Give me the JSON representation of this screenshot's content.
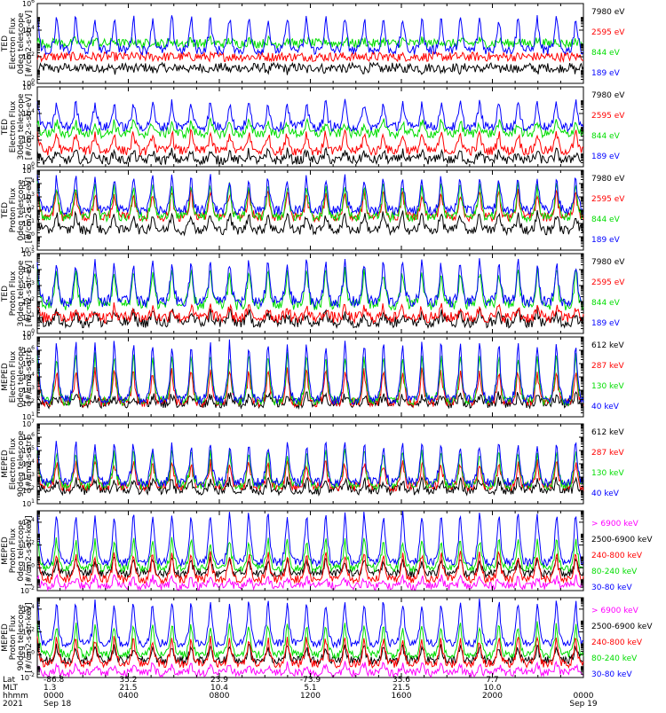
{
  "chart_data": [
    {
      "type": "line",
      "ylabel": [
        "TED",
        "Electron Flux",
        "0deg telescope",
        "[#/cm2-s-str-eV]"
      ],
      "yscale": "log",
      "ylim": [
        1,
        1000000
      ],
      "yticks": [
        {
          "exp": "0"
        },
        {
          "exp": "2"
        },
        {
          "exp": "4"
        },
        {
          "exp": "6"
        }
      ],
      "series": [
        {
          "name": "7980 eV",
          "color": "#000000"
        },
        {
          "name": "2595 eV",
          "color": "#ff0000"
        },
        {
          "name": "844 eV",
          "color": "#00dd00"
        },
        {
          "name": "189 eV",
          "color": "#0000ff"
        }
      ],
      "levels": [
        [
          1.2,
          2.0,
          3.0,
          2.5
        ],
        [
          1.0,
          2.0,
          3.2,
          4.5
        ]
      ]
    },
    {
      "type": "line",
      "ylabel": [
        "TED",
        "Electron Flux",
        "30deg telescope",
        "[#/cm2-s-str-eV]"
      ],
      "yscale": "log",
      "ylim": [
        1,
        1000000
      ],
      "yticks": [
        {
          "exp": "0"
        },
        {
          "exp": "2"
        },
        {
          "exp": "4"
        },
        {
          "exp": "6"
        }
      ],
      "series": [
        {
          "name": "7980 eV",
          "color": "#000000"
        },
        {
          "name": "2595 eV",
          "color": "#ff0000"
        },
        {
          "name": "844 eV",
          "color": "#00dd00"
        },
        {
          "name": "189 eV",
          "color": "#0000ff"
        }
      ],
      "levels": [
        [
          0.5,
          1.2,
          2.5,
          3.0
        ],
        [
          1.0,
          2.3,
          3.2,
          4.5
        ]
      ]
    },
    {
      "type": "line",
      "ylabel": [
        "TED",
        "Proton Flux",
        "0deg telescope",
        "[#/cm2-s-str-eV]"
      ],
      "yscale": "log",
      "ylim": [
        0.1,
        100000
      ],
      "yticks": [
        {
          "exp": "-1"
        },
        {
          "exp": "0"
        },
        {
          "exp": "1"
        },
        {
          "exp": "2"
        },
        {
          "exp": "3"
        },
        {
          "exp": "4"
        },
        {
          "exp": "5"
        }
      ],
      "series": [
        {
          "name": "7980 eV",
          "color": "#000000"
        },
        {
          "name": "2595 eV",
          "color": "#ff0000"
        },
        {
          "name": "844 eV",
          "color": "#00dd00"
        },
        {
          "name": "189 eV",
          "color": "#0000ff"
        }
      ],
      "levels": [
        [
          0.5,
          1.5,
          1.5,
          2.0
        ],
        [
          1.5,
          3.0,
          3.5,
          4.0
        ]
      ]
    },
    {
      "type": "line",
      "ylabel": [
        "TED",
        "Proton Flux",
        "30deg telescope",
        "[#/cm2-s-str-eV]"
      ],
      "yscale": "log",
      "ylim": [
        1,
        100000
      ],
      "yticks": [
        {
          "exp": "0"
        },
        {
          "exp": "1"
        },
        {
          "exp": "2"
        },
        {
          "exp": "3"
        },
        {
          "exp": "4"
        },
        {
          "exp": "5"
        }
      ],
      "series": [
        {
          "name": "7980 eV",
          "color": "#000000"
        },
        {
          "name": "2595 eV",
          "color": "#ff0000"
        },
        {
          "name": "844 eV",
          "color": "#00dd00"
        },
        {
          "name": "189 eV",
          "color": "#0000ff"
        }
      ],
      "levels": [
        [
          0.7,
          1.0,
          1.8,
          2.0
        ],
        [
          1.2,
          1.5,
          3.5,
          4.0
        ]
      ]
    },
    {
      "type": "line",
      "ylabel": [
        "MEPED",
        "Electron Flux",
        "0deg telescope",
        "[#/cm2-s-str]"
      ],
      "yscale": "log",
      "ylim": [
        10,
        10000000
      ],
      "yticks": [
        {
          "exp": "1"
        },
        {
          "exp": "2"
        },
        {
          "exp": "3"
        },
        {
          "exp": "4"
        },
        {
          "exp": "5"
        },
        {
          "exp": "6"
        },
        {
          "exp": "7"
        }
      ],
      "series": [
        {
          "name": "612 keV",
          "color": "#000000"
        },
        {
          "name": "287 keV",
          "color": "#ff0000"
        },
        {
          "name": "130 keV",
          "color": "#00dd00"
        },
        {
          "name": "40 keV",
          "color": "#0000ff"
        }
      ],
      "levels": [
        [
          2.0,
          2.1,
          2.2,
          2.3
        ],
        [
          2.5,
          4.0,
          5.0,
          5.8
        ]
      ]
    },
    {
      "type": "line",
      "ylabel": [
        "MEPED",
        "Electron Flux",
        "90deg telescope",
        "[#/cm2-s-str]"
      ],
      "yscale": "log",
      "ylim": [
        10,
        10000000
      ],
      "yticks": [
        {
          "exp": "1"
        },
        {
          "exp": "2"
        },
        {
          "exp": "3"
        },
        {
          "exp": "4"
        },
        {
          "exp": "5"
        },
        {
          "exp": "6"
        },
        {
          "exp": "7"
        }
      ],
      "series": [
        {
          "name": "612 keV",
          "color": "#000000"
        },
        {
          "name": "287 keV",
          "color": "#ff0000"
        },
        {
          "name": "130 keV",
          "color": "#00dd00"
        },
        {
          "name": "40 keV",
          "color": "#0000ff"
        }
      ],
      "levels": [
        [
          2.0,
          2.3,
          2.4,
          2.6
        ],
        [
          2.6,
          3.8,
          4.5,
          5.0
        ]
      ]
    },
    {
      "type": "line",
      "ylabel": [
        "MEPED",
        "Proton Flux",
        "0deg telescope",
        "[#/cm2-s-str-keV]"
      ],
      "yscale": "log",
      "ylim": [
        0.01,
        100000
      ],
      "yticks": [
        {
          "exp": "-2"
        },
        {
          "exp": "0"
        },
        {
          "exp": "2"
        },
        {
          "exp": "4"
        }
      ],
      "series": [
        {
          "name": "> 6900 keV",
          "color": "#ff00ff"
        },
        {
          "name": "2500-6900 keV",
          "color": "#000000"
        },
        {
          "name": "240-800 keV",
          "color": "#ff0000"
        },
        {
          "name": "80-240 keV",
          "color": "#00dd00"
        },
        {
          "name": "30-80 keV",
          "color": "#0000ff"
        }
      ],
      "levels": [
        [
          -1.6,
          -0.5,
          -1.0,
          0.0,
          0.5
        ],
        [
          -1.0,
          0.5,
          0.8,
          2.0,
          4.0
        ]
      ]
    },
    {
      "type": "line",
      "ylabel": [
        "MEPED",
        "Proton Flux",
        "90deg telescope",
        "[#/cm2-s-str-keV]"
      ],
      "yscale": "log",
      "ylim": [
        0.01,
        100000
      ],
      "yticks": [
        {
          "exp": "-2"
        },
        {
          "exp": "0"
        },
        {
          "exp": "2"
        },
        {
          "exp": "4"
        }
      ],
      "series": [
        {
          "name": "> 6900 keV",
          "color": "#ff00ff"
        },
        {
          "name": "2500-6900 keV",
          "color": "#000000"
        },
        {
          "name": "240-800 keV",
          "color": "#ff0000"
        },
        {
          "name": "80-240 keV",
          "color": "#00dd00"
        },
        {
          "name": "30-80 keV",
          "color": "#0000ff"
        }
      ],
      "levels": [
        [
          -1.6,
          -0.5,
          -0.8,
          0.0,
          1.0
        ],
        [
          -1.0,
          0.5,
          1.0,
          2.2,
          4.0
        ]
      ]
    }
  ],
  "x_axis": {
    "labels": [
      "Lat",
      "MLT",
      "hhmm",
      "2021"
    ],
    "columns": [
      {
        "lat": "-86.8",
        "mlt": "1.3",
        "time": "0000",
        "date": "Sep 18"
      },
      {
        "lat": "35.2",
        "mlt": "21.5",
        "time": "0400",
        "date": ""
      },
      {
        "lat": "23.9",
        "mlt": "10.4",
        "time": "0800",
        "date": ""
      },
      {
        "lat": "-73.9",
        "mlt": "5.1",
        "time": "1200",
        "date": ""
      },
      {
        "lat": "35.6",
        "mlt": "21.5",
        "time": "1600",
        "date": ""
      },
      {
        "lat": "7.7",
        "mlt": "10.0",
        "time": "2000",
        "date": ""
      },
      {
        "lat": "",
        "mlt": "",
        "time": "0000",
        "date": "Sep 19"
      }
    ]
  }
}
